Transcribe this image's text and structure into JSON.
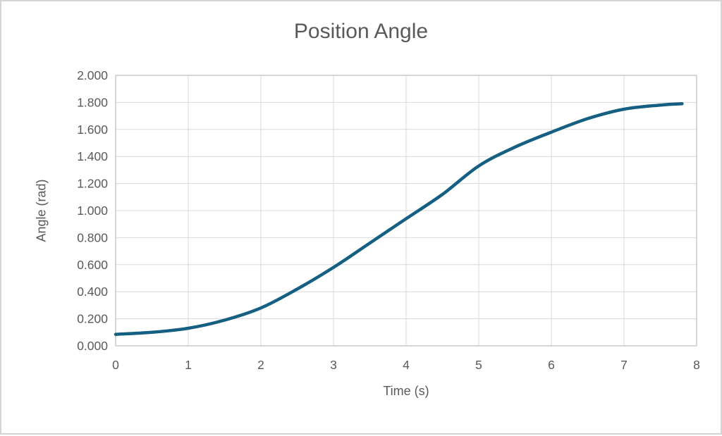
{
  "chart_data": {
    "type": "line",
    "title": "Position Angle",
    "xlabel": "Time (s)",
    "ylabel": "Angle (rad)",
    "xlim": [
      0,
      8
    ],
    "ylim": [
      0,
      2.0
    ],
    "x_ticks": [
      "0",
      "1",
      "2",
      "3",
      "4",
      "5",
      "6",
      "7",
      "8"
    ],
    "y_ticks": [
      "0.000",
      "0.200",
      "0.400",
      "0.600",
      "0.800",
      "1.000",
      "1.200",
      "1.400",
      "1.600",
      "1.800",
      "2.000"
    ],
    "grid": true,
    "legend": "none",
    "series": [
      {
        "name": "Position Angle",
        "x": [
          0,
          0.5,
          1.0,
          1.5,
          2.0,
          2.5,
          3.0,
          3.5,
          4.0,
          4.5,
          5.0,
          5.5,
          6.0,
          6.5,
          7.0,
          7.5,
          7.8
        ],
        "y": [
          0.085,
          0.1,
          0.13,
          0.19,
          0.28,
          0.42,
          0.58,
          0.76,
          0.94,
          1.12,
          1.33,
          1.47,
          1.58,
          1.68,
          1.75,
          1.78,
          1.79
        ]
      }
    ],
    "colors": {
      "line": "#156082",
      "grid": "#d9d9d9",
      "plot_border": "#c4c4c4",
      "text": "#595959",
      "background": "#ffffff",
      "frame_border": "#d4d4d4"
    }
  }
}
